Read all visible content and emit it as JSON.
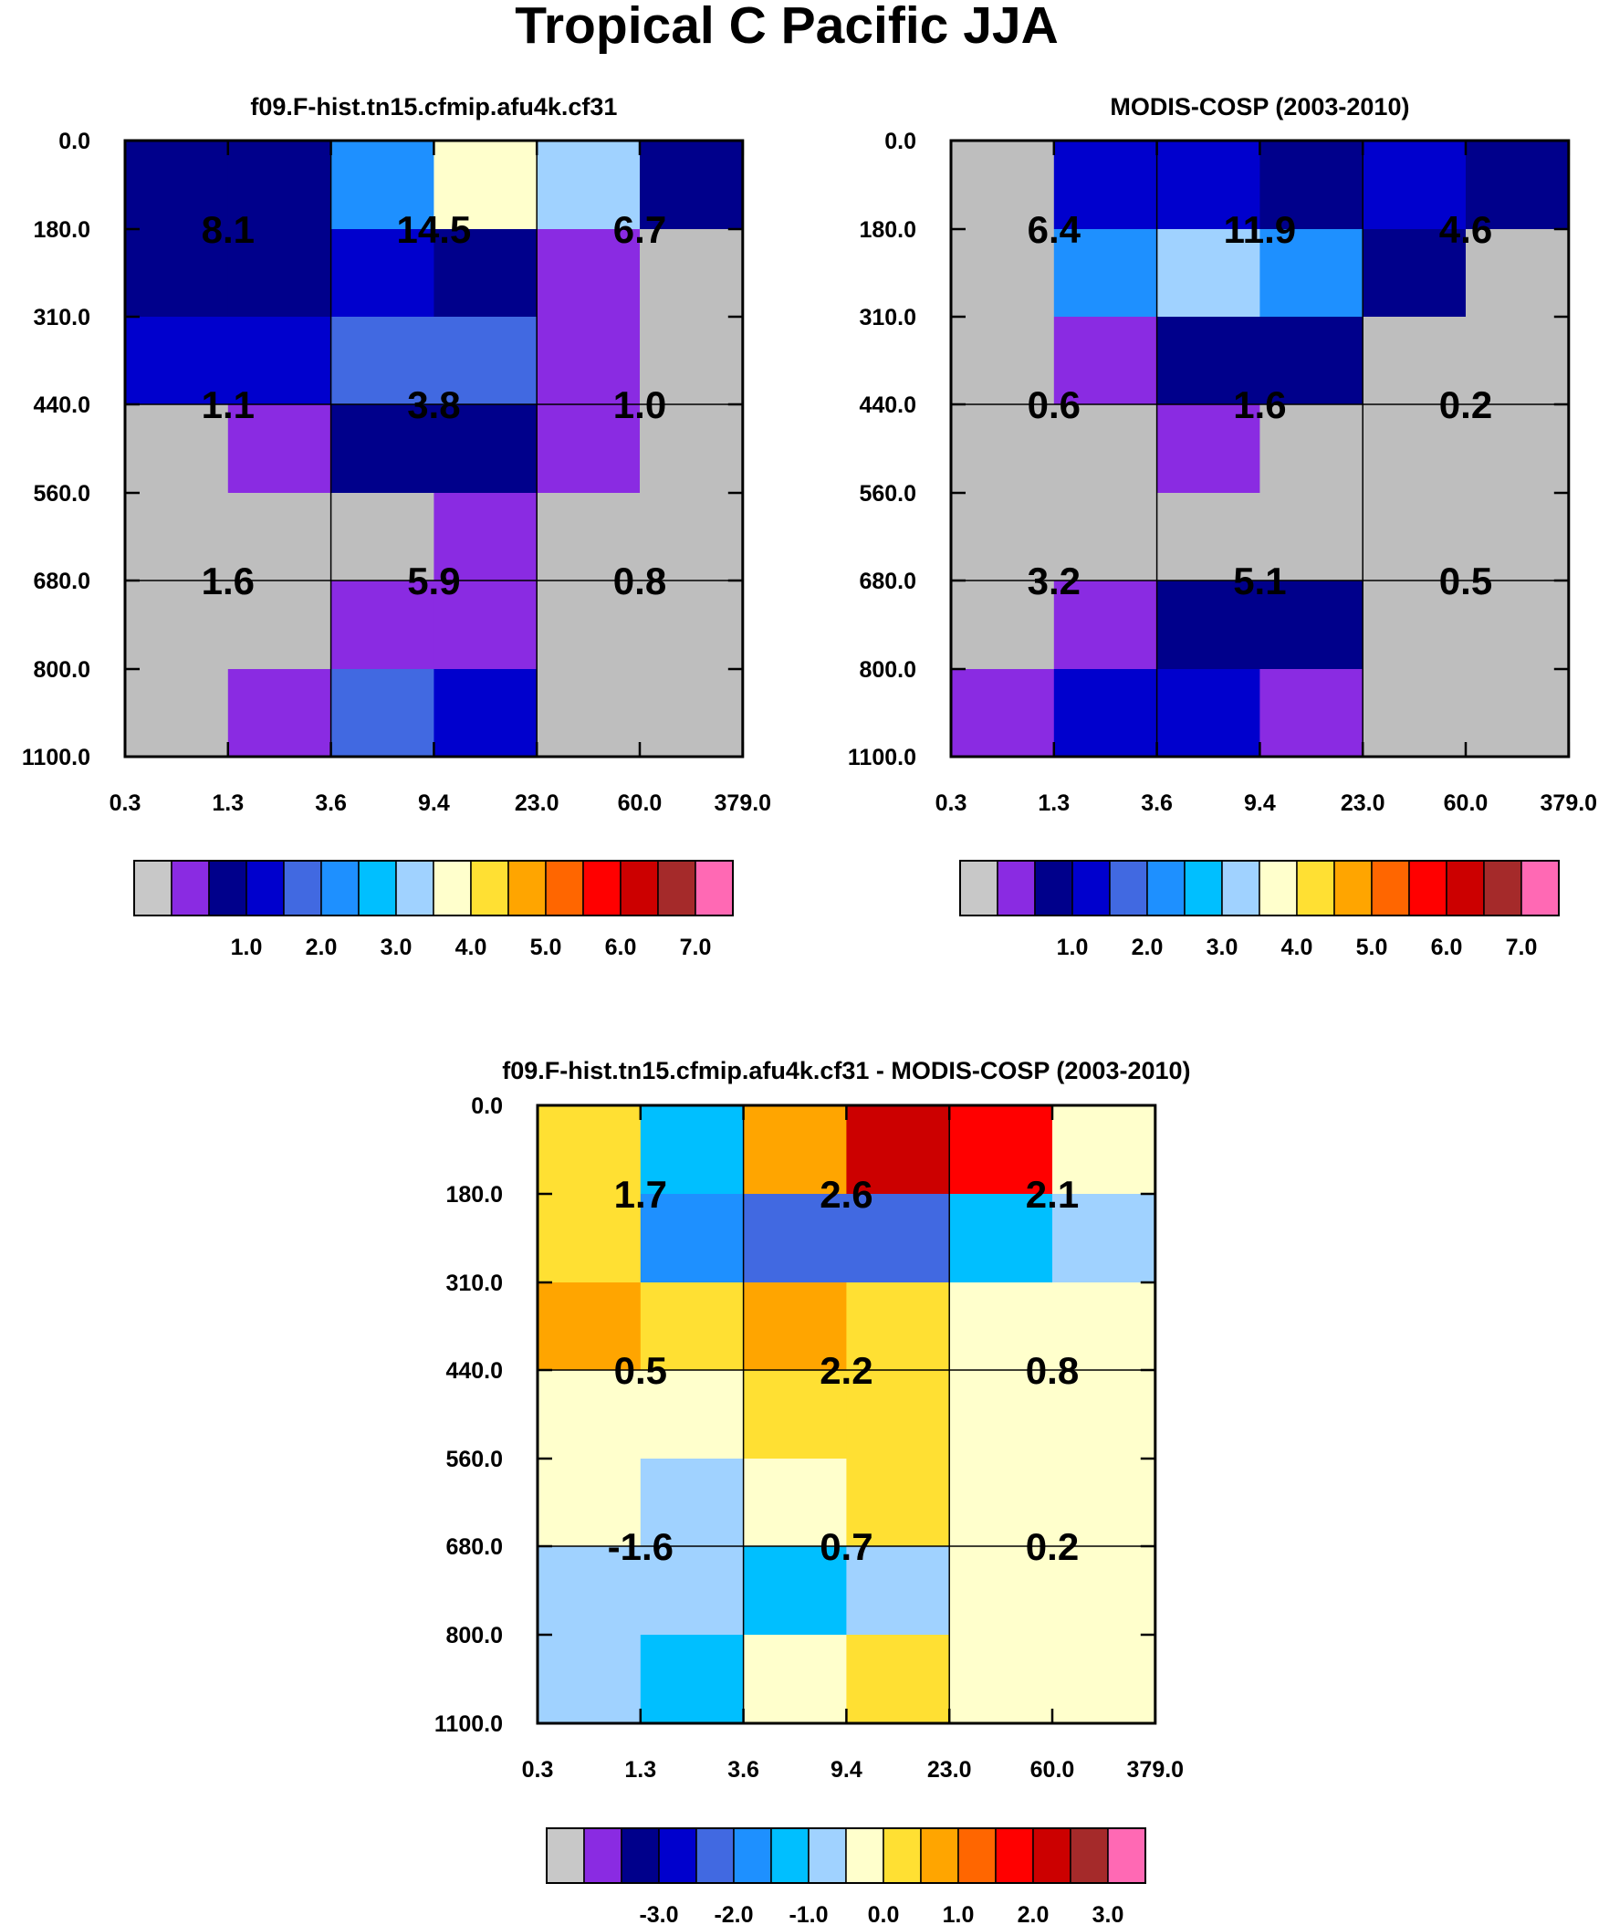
{
  "figure_title": "Tropical C Pacific JJA",
  "chart_data": [
    {
      "type": "heatmap",
      "title": "f09.F-hist.tn15.cfmip.afu4k.cf31",
      "xlabel": "",
      "ylabel": "",
      "x_ticks": [
        "0.3",
        "1.3",
        "3.6",
        "9.4",
        "23.0",
        "60.0",
        "379.0"
      ],
      "y_ticks": [
        "0.0",
        "180.0",
        "310.0",
        "440.0",
        "560.0",
        "680.0",
        "800.0",
        "1100.0"
      ],
      "cell_colors": [
        [
          "#00008B",
          "#00008B",
          "#1E90FF",
          "#FFFFCC",
          "#A0D2FF",
          "#00008B"
        ],
        [
          "#00008B",
          "#00008B",
          "#0000CD",
          "#00008B",
          "#8A2BE2",
          "#BEBEBE"
        ],
        [
          "#0000CD",
          "#0000CD",
          "#4169E1",
          "#4169E1",
          "#8A2BE2",
          "#BEBEBE"
        ],
        [
          "#BEBEBE",
          "#8A2BE2",
          "#00008B",
          "#00008B",
          "#8A2BE2",
          "#BEBEBE"
        ],
        [
          "#BEBEBE",
          "#BEBEBE",
          "#BEBEBE",
          "#8A2BE2",
          "#BEBEBE",
          "#BEBEBE"
        ],
        [
          "#BEBEBE",
          "#BEBEBE",
          "#8A2BE2",
          "#8A2BE2",
          "#BEBEBE",
          "#BEBEBE"
        ],
        [
          "#BEBEBE",
          "#8A2BE2",
          "#4169E1",
          "#0000CD",
          "#BEBEBE",
          "#BEBEBE"
        ]
      ],
      "block_values": [
        [
          "8.1",
          "14.5",
          "6.7"
        ],
        [
          "1.1",
          "3.8",
          "1.0"
        ],
        [
          "1.6",
          "5.9",
          "0.8"
        ]
      ],
      "colorbar_colors": [
        "#C8C8C8",
        "#8A2BE2",
        "#00008B",
        "#0000CD",
        "#4169E1",
        "#1E90FF",
        "#00BFFF",
        "#A0D2FF",
        "#FFFFCC",
        "#FFE033",
        "#FFA500",
        "#FF6600",
        "#FF0000",
        "#CC0000",
        "#A52A2A",
        "#FF69B4"
      ],
      "colorbar_labels": [
        "1.0",
        "2.0",
        "3.0",
        "4.0",
        "5.0",
        "6.0",
        "7.0"
      ]
    },
    {
      "type": "heatmap",
      "title": "MODIS-COSP (2003-2010)",
      "xlabel": "",
      "ylabel": "",
      "x_ticks": [
        "0.3",
        "1.3",
        "3.6",
        "9.4",
        "23.0",
        "60.0",
        "379.0"
      ],
      "y_ticks": [
        "0.0",
        "180.0",
        "310.0",
        "440.0",
        "560.0",
        "680.0",
        "800.0",
        "1100.0"
      ],
      "cell_colors": [
        [
          "#BEBEBE",
          "#0000CD",
          "#0000CD",
          "#00008B",
          "#0000CD",
          "#00008B"
        ],
        [
          "#BEBEBE",
          "#1E90FF",
          "#A0D2FF",
          "#1E90FF",
          "#00008B",
          "#BEBEBE"
        ],
        [
          "#BEBEBE",
          "#8A2BE2",
          "#00008B",
          "#00008B",
          "#BEBEBE",
          "#BEBEBE"
        ],
        [
          "#BEBEBE",
          "#BEBEBE",
          "#8A2BE2",
          "#BEBEBE",
          "#BEBEBE",
          "#BEBEBE"
        ],
        [
          "#BEBEBE",
          "#BEBEBE",
          "#BEBEBE",
          "#BEBEBE",
          "#BEBEBE",
          "#BEBEBE"
        ],
        [
          "#BEBEBE",
          "#8A2BE2",
          "#00008B",
          "#00008B",
          "#BEBEBE",
          "#BEBEBE"
        ],
        [
          "#8A2BE2",
          "#0000CD",
          "#0000CD",
          "#8A2BE2",
          "#BEBEBE",
          "#BEBEBE"
        ]
      ],
      "block_values": [
        [
          "6.4",
          "11.9",
          "4.6"
        ],
        [
          "0.6",
          "1.6",
          "0.2"
        ],
        [
          "3.2",
          "5.1",
          "0.5"
        ]
      ],
      "colorbar_colors": [
        "#C8C8C8",
        "#8A2BE2",
        "#00008B",
        "#0000CD",
        "#4169E1",
        "#1E90FF",
        "#00BFFF",
        "#A0D2FF",
        "#FFFFCC",
        "#FFE033",
        "#FFA500",
        "#FF6600",
        "#FF0000",
        "#CC0000",
        "#A52A2A",
        "#FF69B4"
      ],
      "colorbar_labels": [
        "1.0",
        "2.0",
        "3.0",
        "4.0",
        "5.0",
        "6.0",
        "7.0"
      ]
    },
    {
      "type": "heatmap",
      "title": "f09.F-hist.tn15.cfmip.afu4k.cf31 - MODIS-COSP (2003-2010)",
      "xlabel": "",
      "ylabel": "",
      "x_ticks": [
        "0.3",
        "1.3",
        "3.6",
        "9.4",
        "23.0",
        "60.0",
        "379.0"
      ],
      "y_ticks": [
        "0.0",
        "180.0",
        "310.0",
        "440.0",
        "560.0",
        "680.0",
        "800.0",
        "1100.0"
      ],
      "cell_colors": [
        [
          "#FFE033",
          "#00BFFF",
          "#FFA500",
          "#CC0000",
          "#FF0000",
          "#FFFFCC"
        ],
        [
          "#FFE033",
          "#1E90FF",
          "#4169E1",
          "#4169E1",
          "#00BFFF",
          "#A0D2FF"
        ],
        [
          "#FFA500",
          "#FFE033",
          "#FFA500",
          "#FFE033",
          "#FFFFCC",
          "#FFFFCC"
        ],
        [
          "#FFFFCC",
          "#FFFFCC",
          "#FFE033",
          "#FFE033",
          "#FFFFCC",
          "#FFFFCC"
        ],
        [
          "#FFFFCC",
          "#A0D2FF",
          "#FFFFCC",
          "#FFE033",
          "#FFFFCC",
          "#FFFFCC"
        ],
        [
          "#A0D2FF",
          "#A0D2FF",
          "#00BFFF",
          "#A0D2FF",
          "#FFFFCC",
          "#FFFFCC"
        ],
        [
          "#A0D2FF",
          "#00BFFF",
          "#FFFFCC",
          "#FFE033",
          "#FFFFCC",
          "#FFFFCC"
        ]
      ],
      "block_values": [
        [
          "1.7",
          "2.6",
          "2.1"
        ],
        [
          "0.5",
          "2.2",
          "0.8"
        ],
        [
          "-1.6",
          "0.7",
          "0.2"
        ]
      ],
      "colorbar_colors": [
        "#C8C8C8",
        "#8A2BE2",
        "#00008B",
        "#0000CD",
        "#4169E1",
        "#1E90FF",
        "#00BFFF",
        "#A0D2FF",
        "#FFFFCC",
        "#FFE033",
        "#FFA500",
        "#FF6600",
        "#FF0000",
        "#CC0000",
        "#A52A2A",
        "#FF69B4"
      ],
      "colorbar_labels": [
        "-3.0",
        "-2.0",
        "-1.0",
        "0.0",
        "1.0",
        "2.0",
        "3.0"
      ]
    }
  ]
}
